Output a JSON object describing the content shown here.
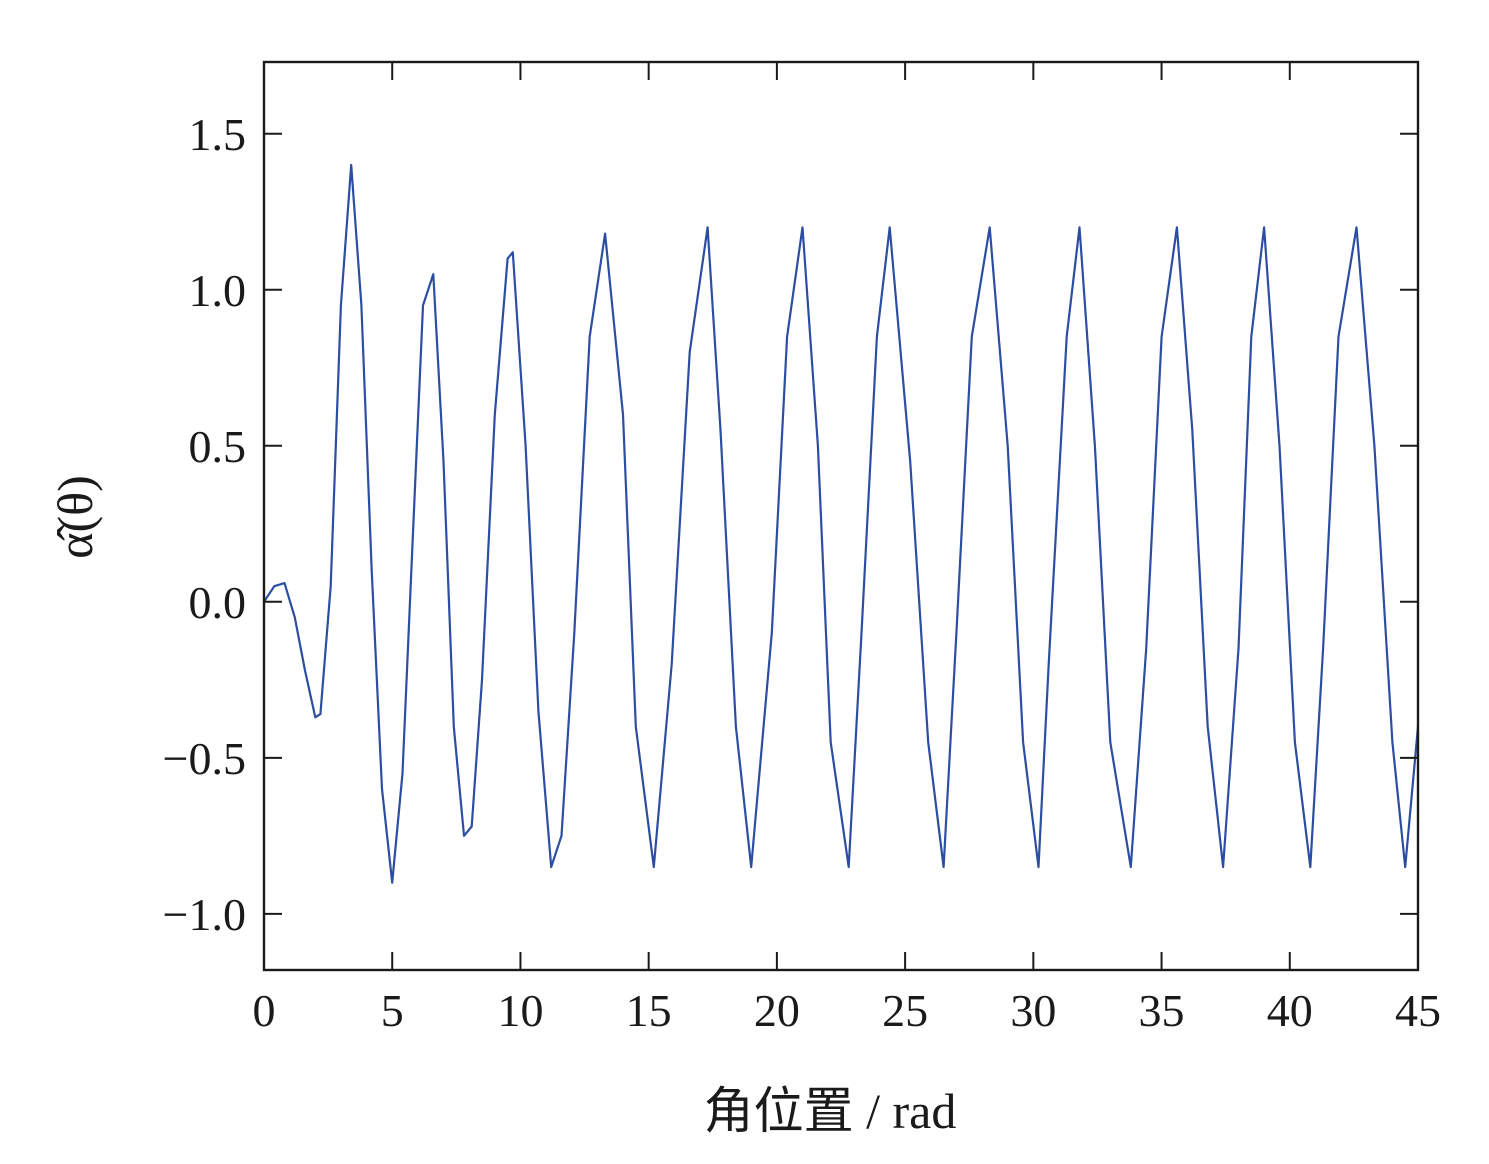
{
  "chart_data": {
    "type": "line",
    "title": "",
    "xlabel": "角位置 / rad",
    "ylabel": "α̂(θ)",
    "xlim": [
      0,
      45
    ],
    "ylim": [
      -1.18,
      1.73
    ],
    "xticks": [
      0,
      5,
      10,
      15,
      20,
      25,
      30,
      35,
      40,
      45
    ],
    "xtick_labels": [
      "0",
      "5",
      "10",
      "15",
      "20",
      "25",
      "30",
      "35",
      "40",
      "45"
    ],
    "yticks": [
      -1.0,
      -0.5,
      0.0,
      0.5,
      1.0,
      1.5
    ],
    "ytick_labels": [
      "−1.0",
      "−0.5",
      "0.0",
      "0.5",
      "1.0",
      "1.5"
    ],
    "grid": false,
    "legend": "none",
    "colors": {
      "series": "#2b4ea2",
      "axes": "#1a1a1a",
      "background": "#ffffff"
    },
    "series": [
      {
        "x": [
          0,
          0.4,
          0.8,
          1.2,
          1.6,
          2.0,
          2.2,
          2.6,
          3.0,
          3.4,
          3.8,
          4.2,
          4.6,
          5.0,
          5.4,
          5.8,
          6.2,
          6.6,
          7.0,
          7.4,
          7.8,
          8.1,
          8.5,
          9.0,
          9.5,
          9.7,
          10.2,
          10.7,
          11.2,
          11.6,
          12.1,
          12.7,
          13.3,
          14.0,
          14.5,
          15.2,
          15.9,
          16.6,
          17.3,
          17.8,
          18.4,
          19.0,
          19.8,
          20.4,
          21.0,
          21.6,
          22.1,
          22.8,
          23.3,
          23.9,
          24.4,
          25.2,
          25.9,
          26.5,
          27.0,
          27.6,
          28.3,
          29.0,
          29.6,
          30.2,
          30.6,
          31.3,
          31.8,
          32.4,
          33.0,
          33.8,
          34.4,
          35.0,
          35.6,
          36.2,
          36.8,
          37.4,
          38.0,
          38.5,
          39.0,
          39.6,
          40.2,
          40.8,
          41.3,
          41.9,
          42.6,
          43.3,
          44.0,
          44.5,
          45.0
        ],
        "y": [
          0.0,
          0.05,
          0.06,
          -0.05,
          -0.22,
          -0.37,
          -0.36,
          0.05,
          0.95,
          1.4,
          0.95,
          0.1,
          -0.6,
          -0.9,
          -0.55,
          0.2,
          0.95,
          1.05,
          0.45,
          -0.4,
          -0.75,
          -0.72,
          -0.25,
          0.6,
          1.1,
          1.12,
          0.5,
          -0.35,
          -0.85,
          -0.75,
          -0.1,
          0.85,
          1.18,
          0.6,
          -0.4,
          -0.85,
          -0.2,
          0.8,
          1.2,
          0.55,
          -0.4,
          -0.85,
          -0.1,
          0.85,
          1.2,
          0.5,
          -0.45,
          -0.85,
          -0.1,
          0.85,
          1.2,
          0.45,
          -0.45,
          -0.85,
          -0.1,
          0.85,
          1.2,
          0.5,
          -0.45,
          -0.85,
          -0.2,
          0.85,
          1.2,
          0.5,
          -0.45,
          -0.85,
          -0.15,
          0.85,
          1.2,
          0.55,
          -0.4,
          -0.85,
          -0.15,
          0.85,
          1.2,
          0.5,
          -0.45,
          -0.85,
          -0.15,
          0.85,
          1.2,
          0.5,
          -0.45,
          -0.85,
          -0.4
        ]
      }
    ]
  }
}
